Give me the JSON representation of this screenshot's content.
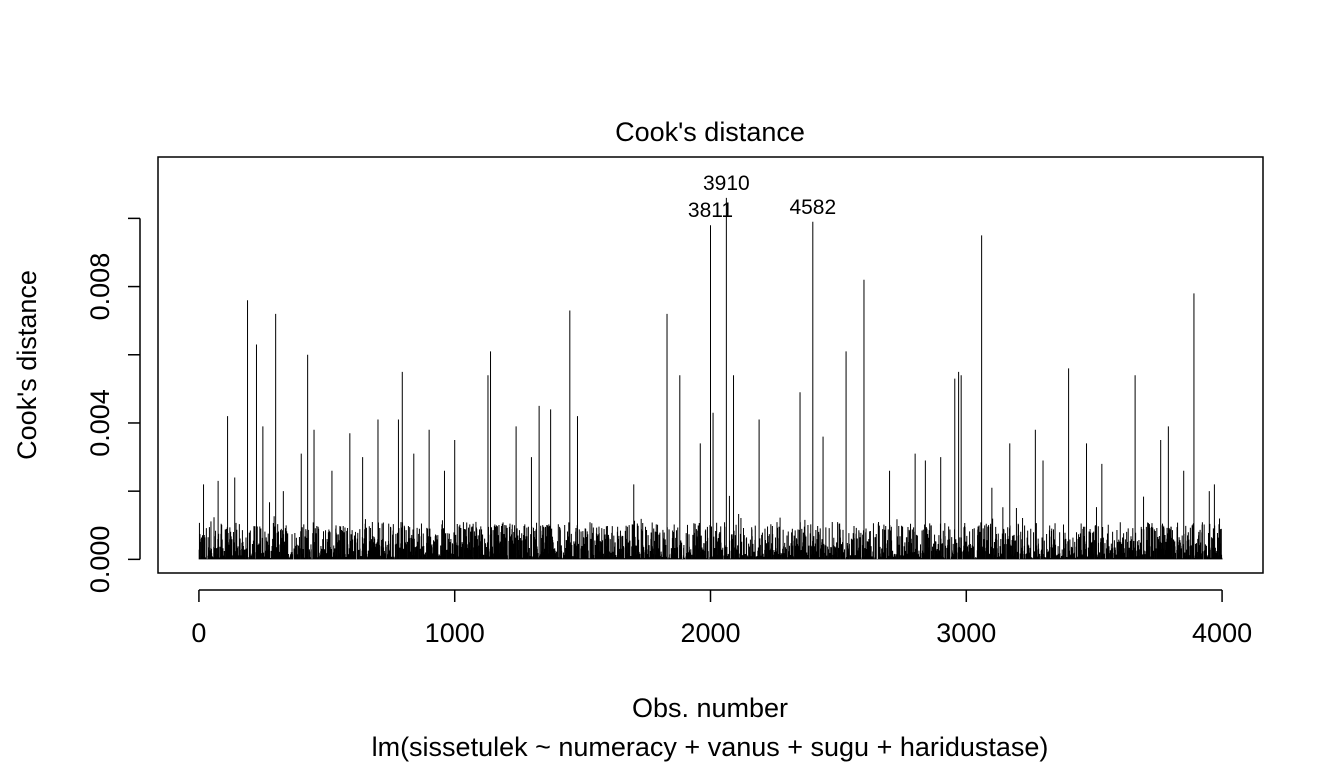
{
  "chart_data": {
    "type": "bar",
    "title": "Cook's distance",
    "xlabel": "Obs. number",
    "subtitle": "lm(sissetulek ~ numeracy + vanus + sugu + haridustase)",
    "ylabel": "Cook's distance",
    "xlim": [
      -160,
      4160
    ],
    "ylim": [
      -0.0004,
      0.0118
    ],
    "x_ticks": [
      0,
      1000,
      2000,
      3000,
      4000
    ],
    "x_tick_labels": [
      "0",
      "1000",
      "2000",
      "3000",
      "4000"
    ],
    "y_ticks": [
      0.0,
      0.002,
      0.004,
      0.006,
      0.008,
      0.01
    ],
    "y_tick_labels": [
      "0.000",
      "",
      "0.004",
      "",
      "0.008",
      ""
    ],
    "n_obs": 4000,
    "grid": false,
    "legend": "none",
    "highlighted": [
      {
        "x": 2000,
        "y": 0.0098,
        "label": "3811"
      },
      {
        "x": 2062,
        "y": 0.0106,
        "label": "3910"
      },
      {
        "x": 2400,
        "y": 0.0099,
        "label": "4582"
      }
    ],
    "tall_bars": [
      {
        "x": 18,
        "y": 0.0022
      },
      {
        "x": 75,
        "y": 0.0023
      },
      {
        "x": 112,
        "y": 0.0042
      },
      {
        "x": 140,
        "y": 0.0024
      },
      {
        "x": 190,
        "y": 0.0076
      },
      {
        "x": 225,
        "y": 0.0063
      },
      {
        "x": 250,
        "y": 0.0039
      },
      {
        "x": 300,
        "y": 0.0072
      },
      {
        "x": 330,
        "y": 0.002
      },
      {
        "x": 400,
        "y": 0.0031
      },
      {
        "x": 425,
        "y": 0.006
      },
      {
        "x": 450,
        "y": 0.0038
      },
      {
        "x": 520,
        "y": 0.0026
      },
      {
        "x": 590,
        "y": 0.0037
      },
      {
        "x": 640,
        "y": 0.003
      },
      {
        "x": 700,
        "y": 0.0041
      },
      {
        "x": 780,
        "y": 0.0041
      },
      {
        "x": 795,
        "y": 0.0055
      },
      {
        "x": 840,
        "y": 0.0031
      },
      {
        "x": 900,
        "y": 0.0038
      },
      {
        "x": 960,
        "y": 0.0026
      },
      {
        "x": 1000,
        "y": 0.0035
      },
      {
        "x": 1130,
        "y": 0.0054
      },
      {
        "x": 1140,
        "y": 0.0061
      },
      {
        "x": 1240,
        "y": 0.0039
      },
      {
        "x": 1300,
        "y": 0.003
      },
      {
        "x": 1330,
        "y": 0.0045
      },
      {
        "x": 1375,
        "y": 0.0044
      },
      {
        "x": 1450,
        "y": 0.0073
      },
      {
        "x": 1480,
        "y": 0.0042
      },
      {
        "x": 1700,
        "y": 0.0022
      },
      {
        "x": 1830,
        "y": 0.0072
      },
      {
        "x": 1880,
        "y": 0.0054
      },
      {
        "x": 1960,
        "y": 0.0034
      },
      {
        "x": 2010,
        "y": 0.0043
      },
      {
        "x": 2090,
        "y": 0.0054
      },
      {
        "x": 2190,
        "y": 0.0041
      },
      {
        "x": 2350,
        "y": 0.0049
      },
      {
        "x": 2440,
        "y": 0.0036
      },
      {
        "x": 2530,
        "y": 0.0061
      },
      {
        "x": 2600,
        "y": 0.0082
      },
      {
        "x": 2700,
        "y": 0.0026
      },
      {
        "x": 2800,
        "y": 0.0031
      },
      {
        "x": 2840,
        "y": 0.0029
      },
      {
        "x": 2900,
        "y": 0.003
      },
      {
        "x": 2955,
        "y": 0.0053
      },
      {
        "x": 2970,
        "y": 0.0055
      },
      {
        "x": 2980,
        "y": 0.0054
      },
      {
        "x": 3060,
        "y": 0.0095
      },
      {
        "x": 3100,
        "y": 0.0021
      },
      {
        "x": 3170,
        "y": 0.0034
      },
      {
        "x": 3270,
        "y": 0.0038
      },
      {
        "x": 3300,
        "y": 0.0029
      },
      {
        "x": 3400,
        "y": 0.0056
      },
      {
        "x": 3470,
        "y": 0.0034
      },
      {
        "x": 3530,
        "y": 0.0028
      },
      {
        "x": 3660,
        "y": 0.0054
      },
      {
        "x": 3760,
        "y": 0.0035
      },
      {
        "x": 3790,
        "y": 0.0039
      },
      {
        "x": 3850,
        "y": 0.0026
      },
      {
        "x": 3890,
        "y": 0.0078
      },
      {
        "x": 3950,
        "y": 0.002
      },
      {
        "x": 3970,
        "y": 0.0022
      },
      {
        "x": 3990,
        "y": 0.0012
      }
    ]
  }
}
